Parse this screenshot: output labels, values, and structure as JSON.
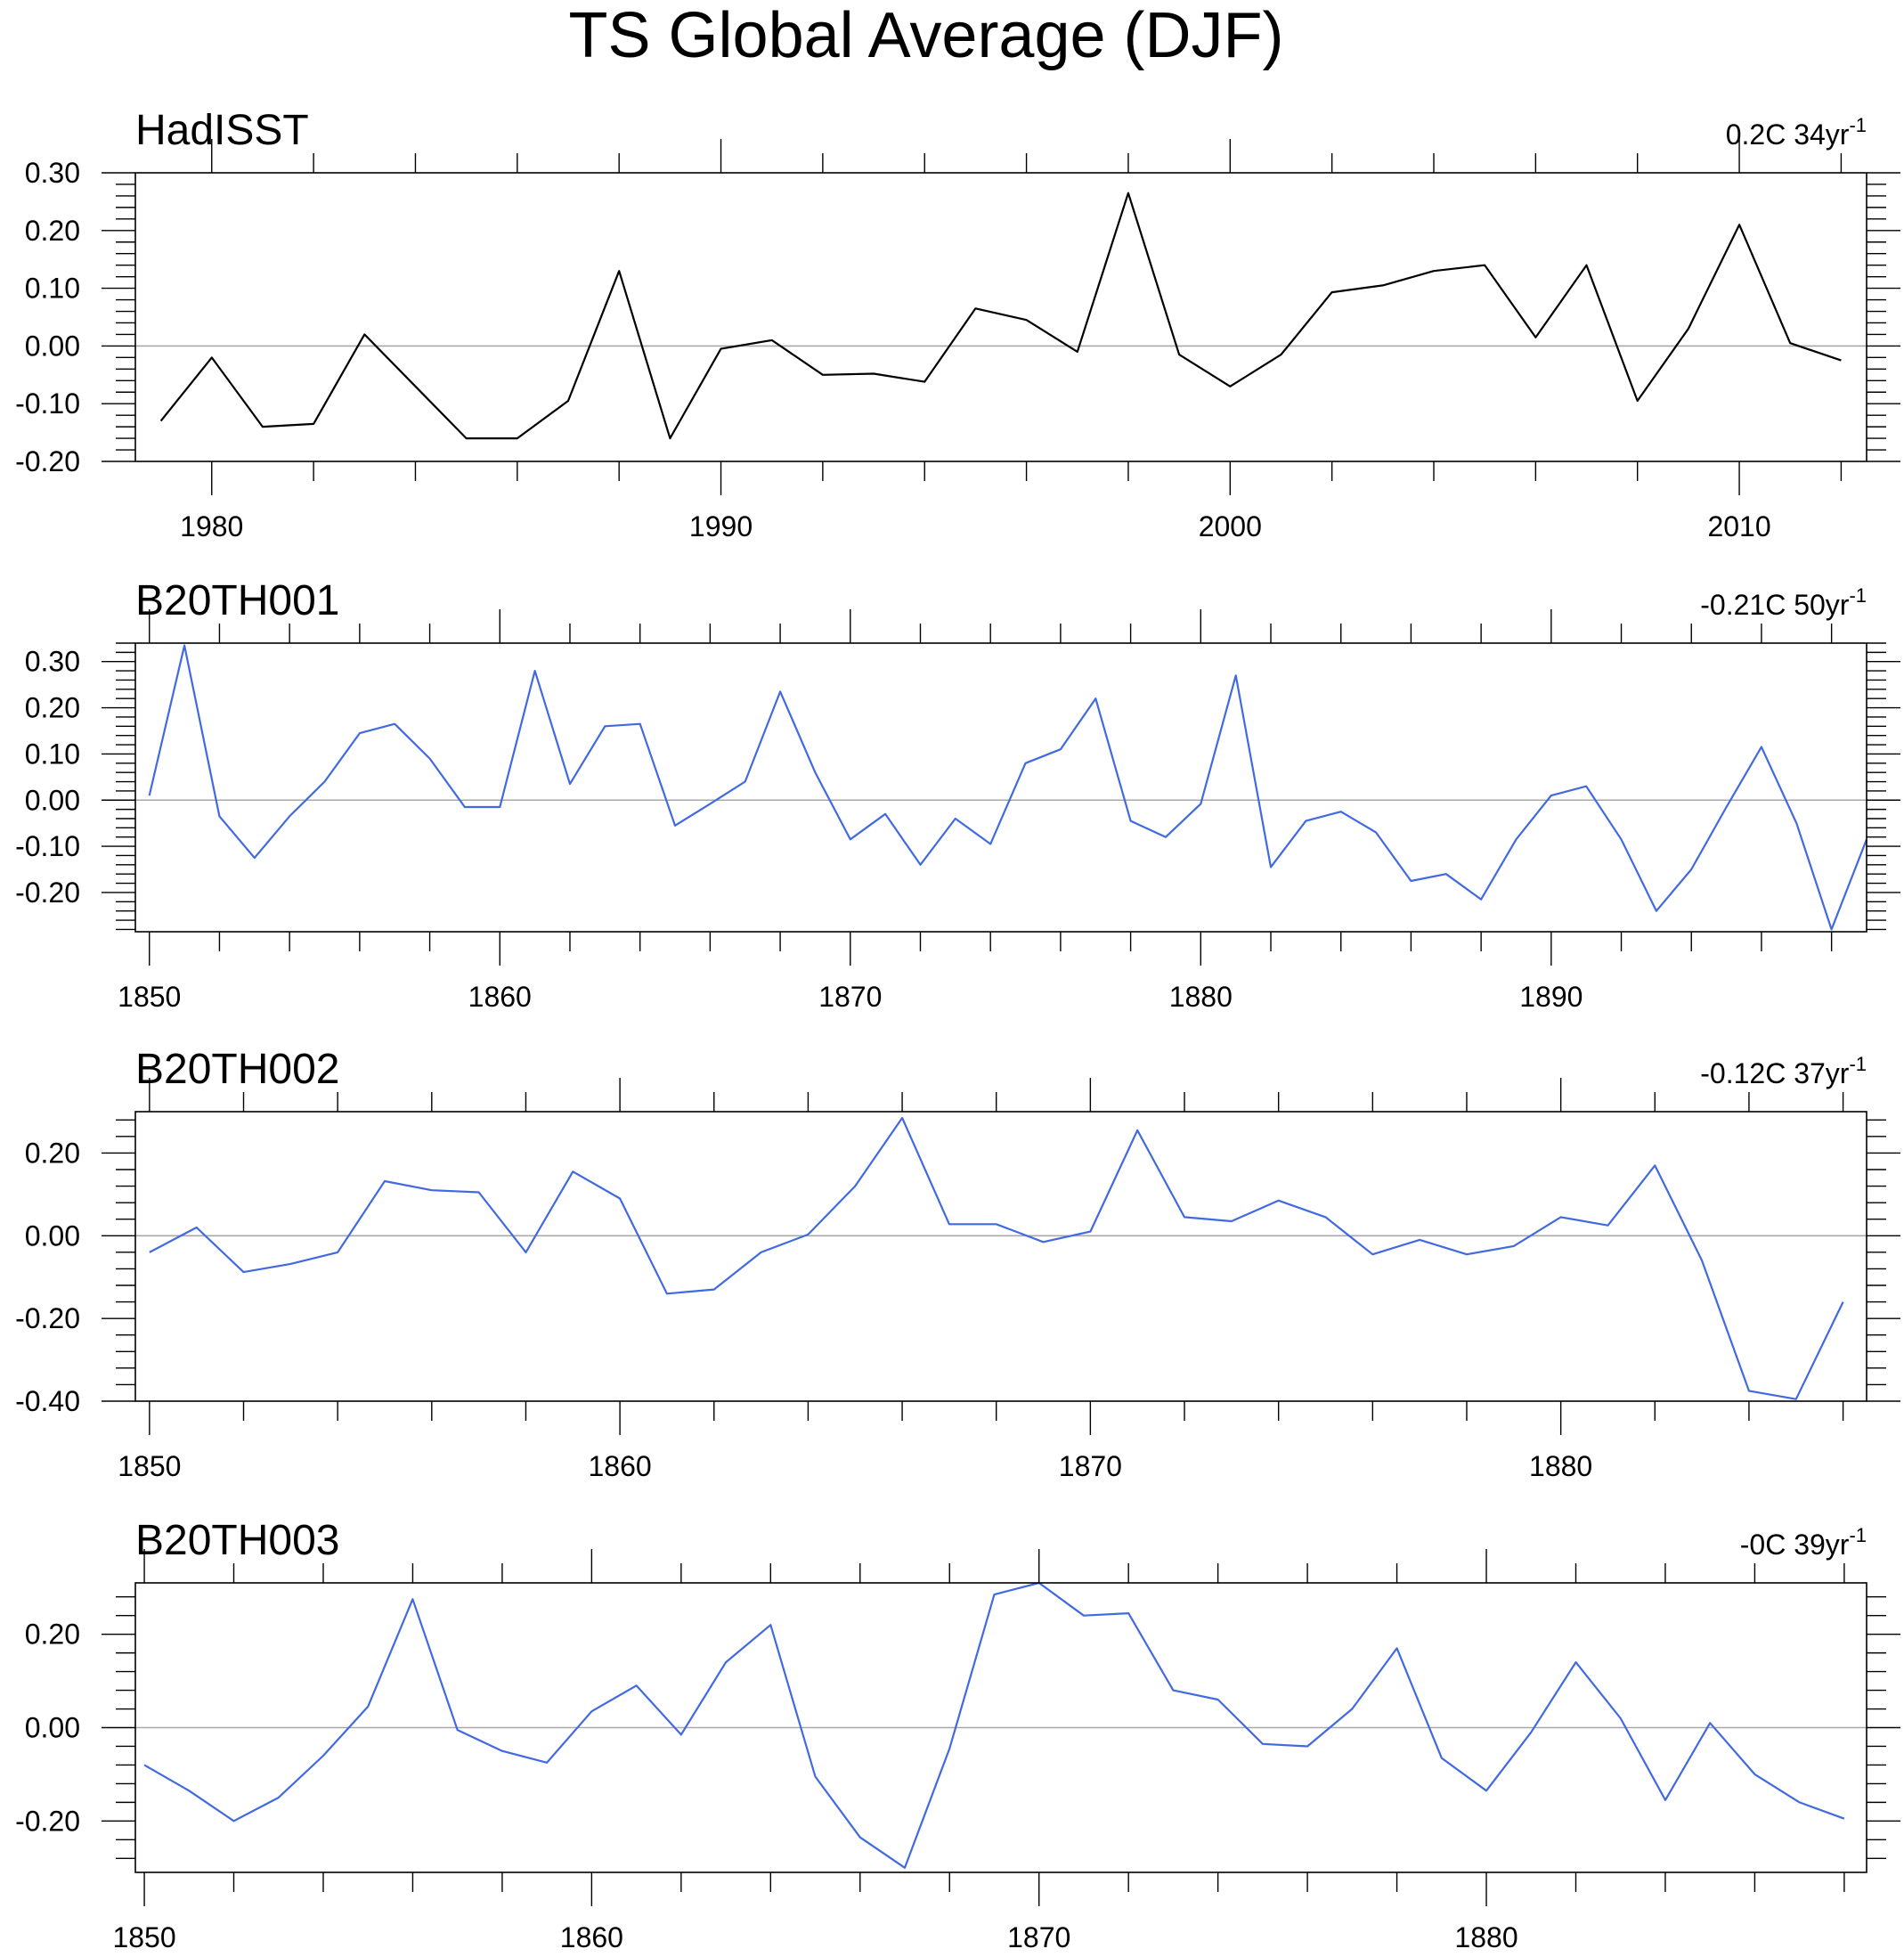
{
  "chart_data": {
    "title": "TS Global Average (DJF)",
    "panels": [
      {
        "type": "line",
        "title": "HadISST",
        "trend_value": "0.2C 34yr",
        "trend_exponent": "-1",
        "color": "#000000",
        "x": [
          1979,
          1980,
          1981,
          1982,
          1983,
          1984,
          1985,
          1986,
          1987,
          1988,
          1989,
          1990,
          1991,
          1992,
          1993,
          1994,
          1995,
          1996,
          1997,
          1998,
          1999,
          2000,
          2001,
          2002,
          2003,
          2004,
          2005,
          2006,
          2007,
          2008,
          2009,
          2010,
          2011,
          2012
        ],
        "values": [
          -0.13,
          -0.02,
          -0.14,
          -0.135,
          0.02,
          -0.07,
          -0.16,
          -0.16,
          -0.095,
          0.13,
          -0.16,
          -0.005,
          0.01,
          -0.05,
          -0.048,
          -0.062,
          0.065,
          0.045,
          -0.01,
          0.265,
          -0.015,
          -0.07,
          -0.015,
          0.093,
          0.105,
          0.13,
          0.14,
          0.015,
          0.14,
          -0.095,
          0.03,
          0.21,
          0.005,
          -0.025
        ],
        "xlim": [
          1978.5,
          2012.5
        ],
        "ylim": [
          -0.2,
          0.3
        ],
        "yticks": [
          -0.2,
          -0.1,
          0.0,
          0.1,
          0.2,
          0.3
        ],
        "ytick_labels": [
          "-0.20",
          "-0.10",
          "0.00",
          "0.10",
          "0.20",
          "0.30"
        ],
        "xticks": [
          1980,
          1990,
          2000,
          2010
        ],
        "xtick_labels": [
          "1980",
          "1990",
          "2000",
          "2010"
        ]
      },
      {
        "type": "line",
        "title": "B20TH001",
        "trend_value": "-0.21C 50yr",
        "trend_exponent": "-1",
        "color": "#4169e1",
        "x": [
          1850,
          1851,
          1852,
          1853,
          1854,
          1855,
          1856,
          1857,
          1858,
          1859,
          1860,
          1861,
          1862,
          1863,
          1864,
          1865,
          1866,
          1867,
          1868,
          1869,
          1870,
          1871,
          1872,
          1873,
          1874,
          1875,
          1876,
          1877,
          1878,
          1879,
          1880,
          1881,
          1882,
          1883,
          1884,
          1885,
          1886,
          1887,
          1888,
          1889,
          1890,
          1891,
          1892,
          1893,
          1894,
          1895,
          1896,
          1897,
          1898,
          1899
        ],
        "values": [
          0.01,
          0.335,
          -0.035,
          -0.125,
          -0.035,
          0.04,
          0.145,
          0.165,
          0.09,
          -0.015,
          -0.015,
          0.28,
          0.035,
          0.16,
          0.165,
          -0.055,
          -0.008,
          0.04,
          0.235,
          0.06,
          -0.085,
          -0.03,
          -0.14,
          -0.04,
          -0.095,
          0.08,
          0.11,
          0.22,
          -0.045,
          -0.08,
          -0.008,
          0.27,
          -0.145,
          -0.045,
          -0.025,
          -0.07,
          -0.175,
          -0.16,
          -0.215,
          -0.085,
          0.01,
          0.03,
          -0.085,
          -0.24,
          -0.15,
          -0.015,
          0.115,
          -0.05,
          -0.28,
          -0.085
        ],
        "xlim": [
          1849.6,
          1899.0
        ],
        "ylim": [
          -0.285,
          0.34
        ],
        "yticks": [
          -0.2,
          -0.1,
          0.0,
          0.1,
          0.2,
          0.3
        ],
        "ytick_labels": [
          "-0.20",
          "-0.10",
          "0.00",
          "0.10",
          "0.20",
          "0.30"
        ],
        "xticks": [
          1850,
          1860,
          1870,
          1880,
          1890
        ],
        "xtick_labels": [
          "1850",
          "1860",
          "1870",
          "1880",
          "1890"
        ]
      },
      {
        "type": "line",
        "title": "B20TH002",
        "trend_value": "-0.12C 37yr",
        "trend_exponent": "-1",
        "color": "#4169e1",
        "x": [
          1850,
          1851,
          1852,
          1853,
          1854,
          1855,
          1856,
          1857,
          1858,
          1859,
          1860,
          1861,
          1862,
          1863,
          1864,
          1865,
          1866,
          1867,
          1868,
          1869,
          1870,
          1871,
          1872,
          1873,
          1874,
          1875,
          1876,
          1877,
          1878,
          1879,
          1880,
          1881,
          1882,
          1883,
          1884,
          1885,
          1886
        ],
        "values": [
          -0.04,
          0.02,
          -0.088,
          -0.068,
          -0.04,
          0.132,
          0.11,
          0.105,
          -0.04,
          0.155,
          0.09,
          -0.14,
          -0.13,
          -0.04,
          0.003,
          0.12,
          0.285,
          0.028,
          0.028,
          -0.015,
          0.01,
          0.255,
          0.045,
          0.035,
          0.085,
          0.045,
          -0.045,
          -0.01,
          -0.045,
          -0.025,
          0.045,
          0.025,
          0.17,
          -0.06,
          -0.375,
          -0.395,
          -0.16
        ],
        "xlim": [
          1849.7,
          1886.5
        ],
        "ylim": [
          -0.4,
          0.3
        ],
        "yticks": [
          -0.4,
          -0.2,
          0.0,
          0.2
        ],
        "ytick_labels": [
          "-0.40",
          "-0.20",
          "0.00",
          "0.20"
        ],
        "xticks": [
          1850,
          1860,
          1870,
          1880
        ],
        "xtick_labels": [
          "1850",
          "1860",
          "1870",
          "1880"
        ]
      },
      {
        "type": "line",
        "title": "B20TH003",
        "trend_value": "-0C 39yr",
        "trend_exponent": "-1",
        "color": "#4169e1",
        "x": [
          1850,
          1851,
          1852,
          1853,
          1854,
          1855,
          1856,
          1857,
          1858,
          1859,
          1860,
          1861,
          1862,
          1863,
          1864,
          1865,
          1866,
          1867,
          1868,
          1869,
          1870,
          1871,
          1872,
          1873,
          1874,
          1875,
          1876,
          1877,
          1878,
          1879,
          1880,
          1881,
          1882,
          1883,
          1884,
          1885,
          1886,
          1887,
          1888
        ],
        "values": [
          -0.08,
          -0.135,
          -0.2,
          -0.15,
          -0.06,
          0.045,
          0.275,
          -0.005,
          -0.05,
          -0.075,
          0.035,
          0.09,
          -0.015,
          0.14,
          0.22,
          -0.105,
          -0.235,
          -0.3,
          -0.045,
          0.285,
          0.31,
          0.24,
          0.245,
          0.08,
          0.06,
          -0.035,
          -0.04,
          0.04,
          0.17,
          -0.065,
          -0.135,
          -0.01,
          0.14,
          0.02,
          -0.155,
          0.01,
          -0.1,
          -0.16,
          -0.195
        ],
        "xlim": [
          1849.8,
          1888.5
        ],
        "ylim": [
          -0.31,
          0.31
        ],
        "yticks": [
          -0.2,
          0.0,
          0.2
        ],
        "ytick_labels": [
          "-0.20",
          "0.00",
          "0.20"
        ],
        "xticks": [
          1850,
          1860,
          1870,
          1880
        ],
        "xtick_labels": [
          "1850",
          "1860",
          "1870",
          "1880"
        ]
      }
    ]
  }
}
